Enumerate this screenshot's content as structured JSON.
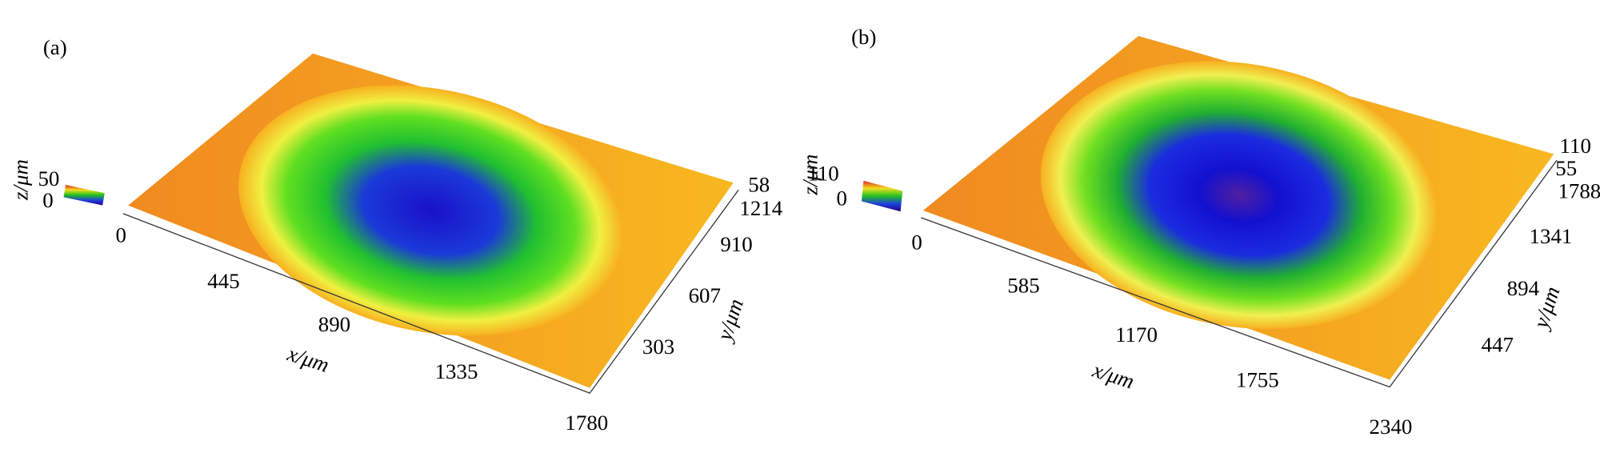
{
  "panels": [
    {
      "label": "(a)",
      "z_axis": {
        "label": "z/μm",
        "ticks": [
          "50",
          "0"
        ]
      },
      "x_axis": {
        "label": "x/μm",
        "ticks": [
          "0",
          "445",
          "890",
          "1335",
          "1780"
        ]
      },
      "y_axis": {
        "label": "y/μm",
        "ticks": [
          "58",
          "1214",
          "910",
          "607",
          "303"
        ]
      }
    },
    {
      "label": "(b)",
      "z_axis": {
        "label": "z/μm",
        "ticks": [
          "110",
          "0"
        ]
      },
      "x_axis": {
        "label": "x/μm",
        "ticks": [
          "0",
          "585",
          "1170",
          "1755",
          "2340"
        ]
      },
      "y_axis": {
        "label": "y/μm",
        "ticks": [
          "110",
          "55",
          "1788",
          "1341",
          "894",
          "447"
        ]
      }
    }
  ]
}
